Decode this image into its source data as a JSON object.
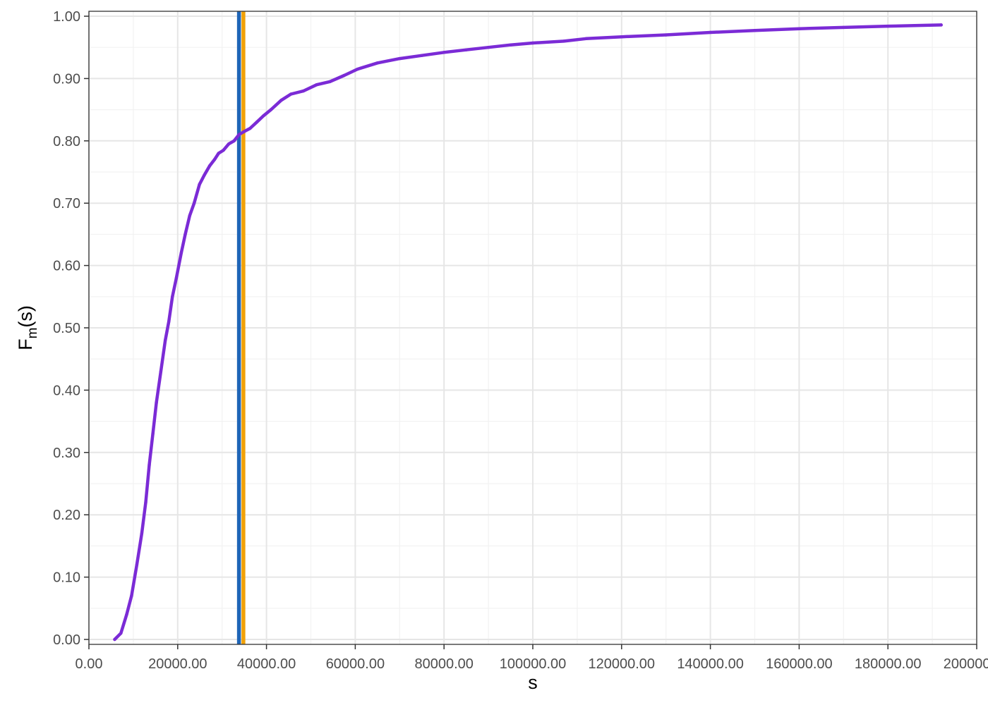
{
  "chart_data": {
    "type": "line",
    "xlabel": "s",
    "ylabel_main": "F",
    "ylabel_sub": "m",
    "ylabel_tail": "(s)",
    "xlim": [
      0,
      200000
    ],
    "ylim": [
      0,
      1
    ],
    "x_ticks": [
      0,
      20000,
      40000,
      60000,
      80000,
      100000,
      120000,
      140000,
      160000,
      180000,
      200000
    ],
    "x_tick_labels": [
      "0.00",
      "20000.00",
      "40000.00",
      "60000.00",
      "80000.00",
      "100000.00",
      "120000.00",
      "140000.00",
      "160000.00",
      "180000.00",
      "200000.00"
    ],
    "y_ticks": [
      0,
      0.1,
      0.2,
      0.3,
      0.4,
      0.5,
      0.6,
      0.7,
      0.8,
      0.9,
      1.0
    ],
    "y_tick_labels": [
      "0.00",
      "0.10",
      "0.20",
      "0.30",
      "0.40",
      "0.50",
      "0.60",
      "0.70",
      "0.80",
      "0.90",
      "1.00"
    ],
    "grid": true,
    "series": [
      {
        "color": "#7b2bd6",
        "x": [
          5800,
          7200,
          8500,
          9600,
          10800,
          11900,
          12800,
          13600,
          14400,
          15200,
          16200,
          17200,
          18000,
          18800,
          19700,
          20800,
          21700,
          22700,
          23700,
          24900,
          26000,
          27200,
          28300,
          29200,
          30300,
          31500,
          32700,
          33800,
          35000,
          36300,
          37800,
          39300,
          41000,
          43300,
          45500,
          48300,
          51300,
          54300,
          57500,
          60500,
          65000,
          70000,
          75000,
          80000,
          85000,
          90000,
          95000,
          100000,
          107000,
          112000,
          120000,
          130000,
          140000,
          150000,
          160000,
          170000,
          180000,
          186000,
          192000
        ],
        "y": [
          0.0,
          0.01,
          0.04,
          0.07,
          0.12,
          0.17,
          0.22,
          0.28,
          0.33,
          0.38,
          0.43,
          0.48,
          0.51,
          0.55,
          0.58,
          0.62,
          0.65,
          0.68,
          0.7,
          0.73,
          0.745,
          0.76,
          0.77,
          0.78,
          0.785,
          0.795,
          0.8,
          0.81,
          0.815,
          0.82,
          0.83,
          0.84,
          0.85,
          0.865,
          0.875,
          0.88,
          0.89,
          0.895,
          0.905,
          0.915,
          0.925,
          0.932,
          0.937,
          0.942,
          0.946,
          0.95,
          0.954,
          0.957,
          0.96,
          0.964,
          0.967,
          0.97,
          0.974,
          0.977,
          0.98,
          0.982,
          0.984,
          0.985,
          0.986
        ]
      }
    ],
    "vlines": [
      {
        "x": 33800,
        "color": "#1f65b7"
      },
      {
        "x": 34800,
        "color": "#f2a208"
      }
    ]
  }
}
